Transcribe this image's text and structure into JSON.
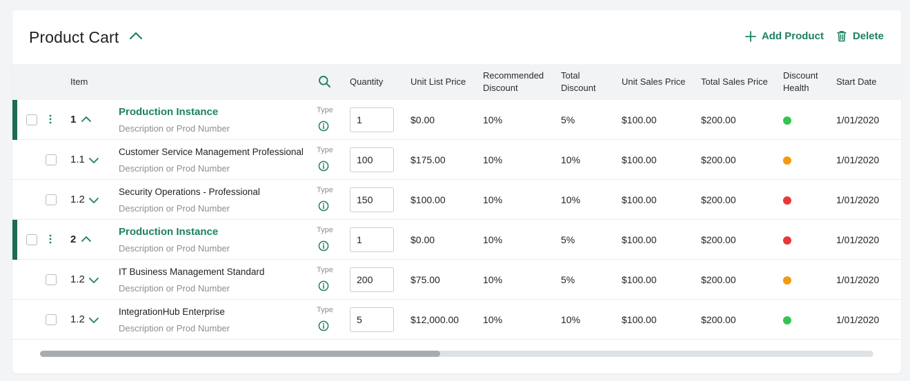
{
  "header": {
    "title": "Product Cart",
    "add_label": "Add Product",
    "delete_label": "Delete"
  },
  "columns": {
    "item": "Item",
    "quantity": "Quantity",
    "unit_list_price": "Unit List Price",
    "recommended_discount_1": "Recommended",
    "recommended_discount_2": "Discount",
    "total_discount_1": "Total",
    "total_discount_2": "Discount",
    "unit_sales_price": "Unit Sales Price",
    "total_sales_price": "Total Sales Price",
    "discount_health_1": "Discount",
    "discount_health_2": "Health",
    "start_date": "Start Date"
  },
  "type_label": "Type",
  "colors": {
    "accent": "#1c8064",
    "green": "#35c451",
    "orange": "#f39a12",
    "red": "#e93838"
  },
  "rows": [
    {
      "level": "parent",
      "num": "1",
      "name": "Production Instance",
      "desc": "Description or Prod Number",
      "qty": "1",
      "unit_list": "$0.00",
      "rec_disc": "10%",
      "total_disc": "5%",
      "unit_sales": "$100.00",
      "total_sales": "$200.00",
      "health": "green",
      "start": "1/01/2020"
    },
    {
      "level": "child",
      "num": "1.1",
      "name": "Customer Service Management Professional",
      "desc": "Description or Prod Number",
      "qty": "100",
      "unit_list": "$175.00",
      "rec_disc": "10%",
      "total_disc": "10%",
      "unit_sales": "$100.00",
      "total_sales": "$200.00",
      "health": "orange",
      "start": "1/01/2020"
    },
    {
      "level": "child",
      "num": "1.2",
      "name": "Security Operations - Professional",
      "desc": "Description or Prod Number",
      "qty": "150",
      "unit_list": "$100.00",
      "rec_disc": "10%",
      "total_disc": "10%",
      "unit_sales": "$100.00",
      "total_sales": "$200.00",
      "health": "red",
      "start": "1/01/2020"
    },
    {
      "level": "parent",
      "num": "2",
      "name": "Production Instance",
      "desc": "Description or Prod Number",
      "qty": "1",
      "unit_list": "$0.00",
      "rec_disc": "10%",
      "total_disc": "5%",
      "unit_sales": "$100.00",
      "total_sales": "$200.00",
      "health": "red",
      "start": "1/01/2020"
    },
    {
      "level": "child",
      "num": "1.2",
      "name": "IT Business Management Standard",
      "desc": "Description or Prod Number",
      "qty": "200",
      "unit_list": "$75.00",
      "rec_disc": "10%",
      "total_disc": "5%",
      "unit_sales": "$100.00",
      "total_sales": "$200.00",
      "health": "orange",
      "start": "1/01/2020"
    },
    {
      "level": "child",
      "num": "1.2",
      "name": "IntegrationHub Enterprise",
      "desc": "Description or Prod Number",
      "qty": "5",
      "unit_list": "$12,000.00",
      "rec_disc": "10%",
      "total_disc": "10%",
      "unit_sales": "$100.00",
      "total_sales": "$200.00",
      "health": "green",
      "start": "1/01/2020"
    }
  ],
  "scrollbar": {
    "thumb_fraction": 0.48
  }
}
